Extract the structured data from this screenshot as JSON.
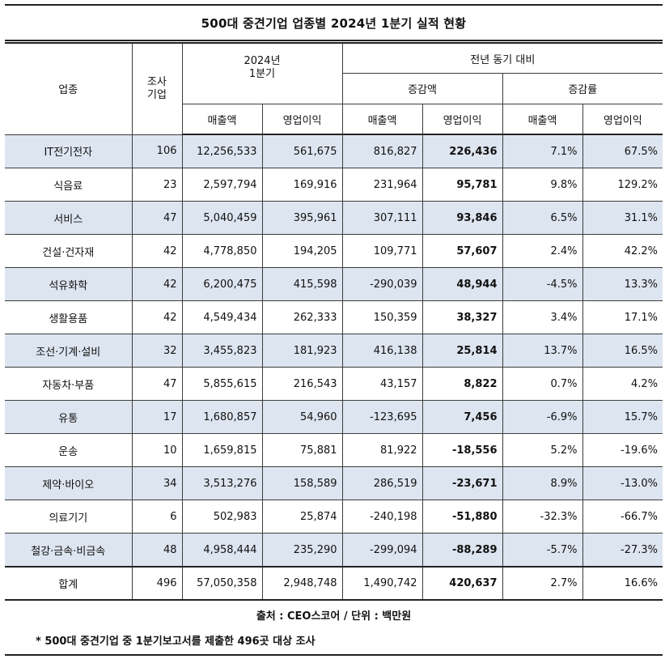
{
  "title": "500대 중견기업 업종별 2024년 1분기 실적 현황",
  "headers": {
    "industry": "업종",
    "survey_companies": "조사\n기업",
    "period": "2024년\n1분기",
    "yoy": "전년 동기 대비",
    "change_amount": "증감액",
    "change_rate": "증감률",
    "sales": "매출액",
    "op_profit": "영업이익"
  },
  "rows": [
    {
      "industry": "IT전기전자",
      "companies": "106",
      "sales": "12,256,533",
      "op_profit": "561,675",
      "sales_change": "816,827",
      "op_change": "226,436",
      "sales_rate": "7.1%",
      "op_rate": "67.5%"
    },
    {
      "industry": "식음료",
      "companies": "23",
      "sales": "2,597,794",
      "op_profit": "169,916",
      "sales_change": "231,964",
      "op_change": "95,781",
      "sales_rate": "9.8%",
      "op_rate": "129.2%"
    },
    {
      "industry": "서비스",
      "companies": "47",
      "sales": "5,040,459",
      "op_profit": "395,961",
      "sales_change": "307,111",
      "op_change": "93,846",
      "sales_rate": "6.5%",
      "op_rate": "31.1%"
    },
    {
      "industry": "건설·건자재",
      "companies": "42",
      "sales": "4,778,850",
      "op_profit": "194,205",
      "sales_change": "109,771",
      "op_change": "57,607",
      "sales_rate": "2.4%",
      "op_rate": "42.2%"
    },
    {
      "industry": "석유화학",
      "companies": "42",
      "sales": "6,200,475",
      "op_profit": "415,598",
      "sales_change": "-290,039",
      "op_change": "48,944",
      "sales_rate": "-4.5%",
      "op_rate": "13.3%"
    },
    {
      "industry": "생활용품",
      "companies": "42",
      "sales": "4,549,434",
      "op_profit": "262,333",
      "sales_change": "150,359",
      "op_change": "38,327",
      "sales_rate": "3.4%",
      "op_rate": "17.1%"
    },
    {
      "industry": "조선·기계·설비",
      "companies": "32",
      "sales": "3,455,823",
      "op_profit": "181,923",
      "sales_change": "416,138",
      "op_change": "25,814",
      "sales_rate": "13.7%",
      "op_rate": "16.5%"
    },
    {
      "industry": "자동차·부품",
      "companies": "47",
      "sales": "5,855,615",
      "op_profit": "216,543",
      "sales_change": "43,157",
      "op_change": "8,822",
      "sales_rate": "0.7%",
      "op_rate": "4.2%"
    },
    {
      "industry": "유통",
      "companies": "17",
      "sales": "1,680,857",
      "op_profit": "54,960",
      "sales_change": "-123,695",
      "op_change": "7,456",
      "sales_rate": "-6.9%",
      "op_rate": "15.7%"
    },
    {
      "industry": "운송",
      "companies": "10",
      "sales": "1,659,815",
      "op_profit": "75,881",
      "sales_change": "81,922",
      "op_change": "-18,556",
      "sales_rate": "5.2%",
      "op_rate": "-19.6%"
    },
    {
      "industry": "제약·바이오",
      "companies": "34",
      "sales": "3,513,276",
      "op_profit": "158,589",
      "sales_change": "286,519",
      "op_change": "-23,671",
      "sales_rate": "8.9%",
      "op_rate": "-13.0%"
    },
    {
      "industry": "의료기기",
      "companies": "6",
      "sales": "502,983",
      "op_profit": "25,874",
      "sales_change": "-240,198",
      "op_change": "-51,880",
      "sales_rate": "-32.3%",
      "op_rate": "-66.7%"
    },
    {
      "industry": "철강·금속·비금속",
      "companies": "48",
      "sales": "4,958,444",
      "op_profit": "235,290",
      "sales_change": "-299,094",
      "op_change": "-88,289",
      "sales_rate": "-5.7%",
      "op_rate": "-27.3%"
    }
  ],
  "total": {
    "industry": "합계",
    "companies": "496",
    "sales": "57,050,358",
    "op_profit": "2,948,748",
    "sales_change": "1,490,742",
    "op_change": "420,637",
    "sales_rate": "2.7%",
    "op_rate": "16.6%"
  },
  "source": "출처 : CEO스코어 / 단위 : 백만원",
  "note": "* 500대 중견기업 중 1분기보고서를 제출한 496곳 대상 조사",
  "colors": {
    "shaded_row": "#dde5f0",
    "border": "#3c3c3c"
  }
}
